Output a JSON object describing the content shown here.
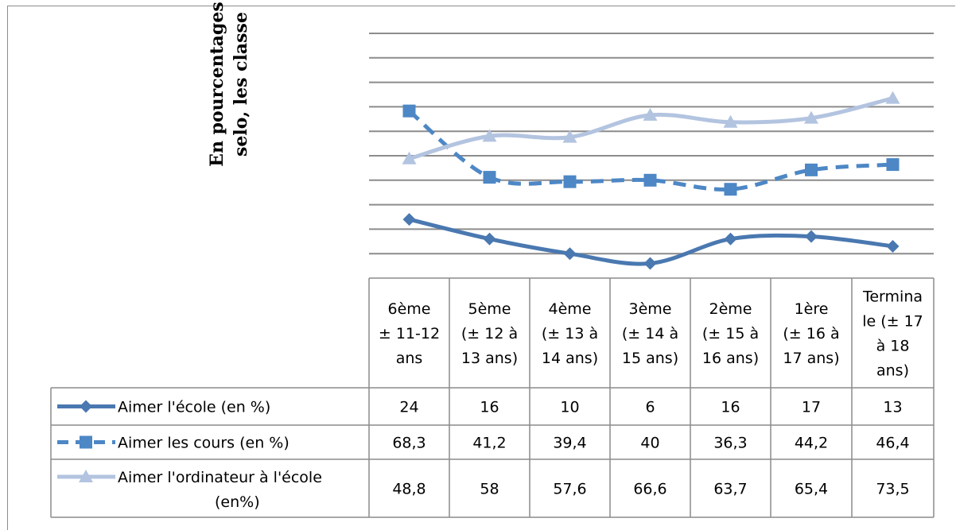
{
  "chart_data": {
    "type": "line",
    "ylabel": [
      "En pourcentages",
      "selo, les  classe"
    ],
    "ylim": [
      0,
      100
    ],
    "grid": true,
    "categories": [
      [
        "6ème",
        "± 11-12",
        "ans"
      ],
      [
        "5ème",
        "(± 12 à",
        "13 ans)"
      ],
      [
        "4ème",
        "(± 13 à",
        "14 ans)"
      ],
      [
        "3ème",
        "(± 14 à",
        "15 ans)"
      ],
      [
        "2ème",
        "(± 15 à",
        "16 ans)"
      ],
      [
        "1ère",
        "(± 16 à",
        "17 ans)"
      ],
      [
        "Termina",
        "le (± 17",
        "à 18",
        "ans)"
      ]
    ],
    "series": [
      {
        "name": [
          "Aimer l'école (en %)"
        ],
        "values": [
          24,
          16,
          10,
          6,
          16,
          17,
          13
        ],
        "labels": [
          "24",
          "16",
          "10",
          "6",
          "16",
          "17",
          "13"
        ],
        "color": "#4a78b0",
        "style": "solid",
        "marker": "diamond"
      },
      {
        "name": [
          "Aimer les cours (en %)"
        ],
        "values": [
          68.3,
          41.2,
          39.4,
          40,
          36.3,
          44.2,
          46.4
        ],
        "labels": [
          "68,3",
          "41,2",
          "39,4",
          "40",
          "36,3",
          "44,2",
          "46,4"
        ],
        "color": "#4d87c5",
        "style": "dashed",
        "marker": "square"
      },
      {
        "name": [
          "Aimer l'ordinateur à l'école",
          "(en%)"
        ],
        "values": [
          48.8,
          58,
          57.6,
          66.6,
          63.7,
          65.4,
          73.5
        ],
        "labels": [
          "48,8",
          "58",
          "57,6",
          "66,6",
          "63,7",
          "65,4",
          "73,5"
        ],
        "color": "#b3c4e0",
        "style": "solid",
        "marker": "triangle"
      }
    ]
  }
}
